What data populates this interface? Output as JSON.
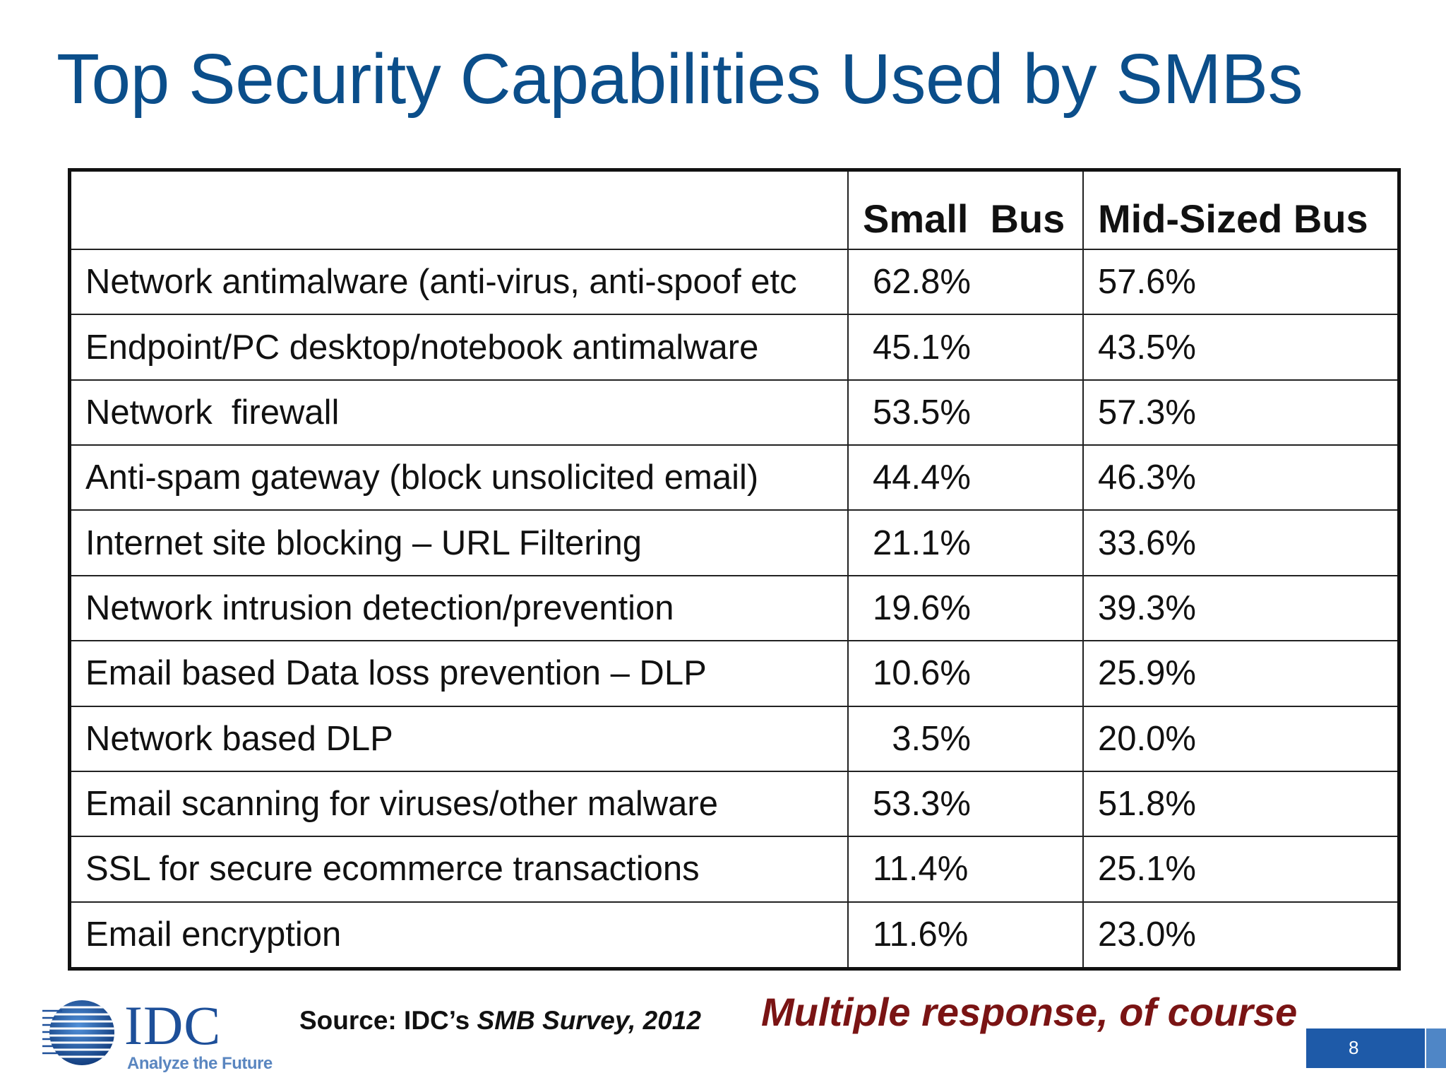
{
  "slide": {
    "title": "Top Security Capabilities Used by SMBs",
    "page_number": "8"
  },
  "table": {
    "headers": [
      "",
      "Small  Bus",
      "Mid-Sized Bus"
    ],
    "rows": [
      {
        "capability": "Network antimalware (anti-virus, anti-spoof etc",
        "small": "62.8%",
        "mid": "57.6%"
      },
      {
        "capability": "Endpoint/PC desktop/notebook antimalware",
        "small": "45.1%",
        "mid": "43.5%"
      },
      {
        "capability": "Network  firewall",
        "small": "53.5%",
        "mid": "57.3%"
      },
      {
        "capability": "Anti-spam gateway (block unsolicited email)",
        "small": "44.4%",
        "mid": "46.3%"
      },
      {
        "capability": "Internet site blocking – URL Filtering",
        "small": "21.1%",
        "mid": "33.6%"
      },
      {
        "capability": "Network intrusion detection/prevention",
        "small": "19.6%",
        "mid": "39.3%"
      },
      {
        "capability": "Email based Data loss prevention – DLP",
        "small": "10.6%",
        "mid": "25.9%"
      },
      {
        "capability": "Network based DLP",
        "small": "  3.5%",
        "mid": "20.0%"
      },
      {
        "capability": "Email scanning for viruses/other malware",
        "small": "53.3%",
        "mid": "51.8%"
      },
      {
        "capability": "SSL for secure ecommerce transactions",
        "small": "11.4%",
        "mid": "25.1%"
      },
      {
        "capability": "Email encryption",
        "small": "11.6%",
        "mid": "23.0%"
      }
    ]
  },
  "footer": {
    "logo_name": "IDC",
    "logo_tagline": "Analyze the Future",
    "source_prefix": "Source: IDC’s ",
    "source_survey": "SMB Survey, 2012",
    "note": "Multiple response, of course"
  },
  "colors": {
    "title": "#0b4e8a",
    "note": "#7a1414",
    "page_box": "#1e5aa8",
    "logo": "#1d4f99"
  }
}
